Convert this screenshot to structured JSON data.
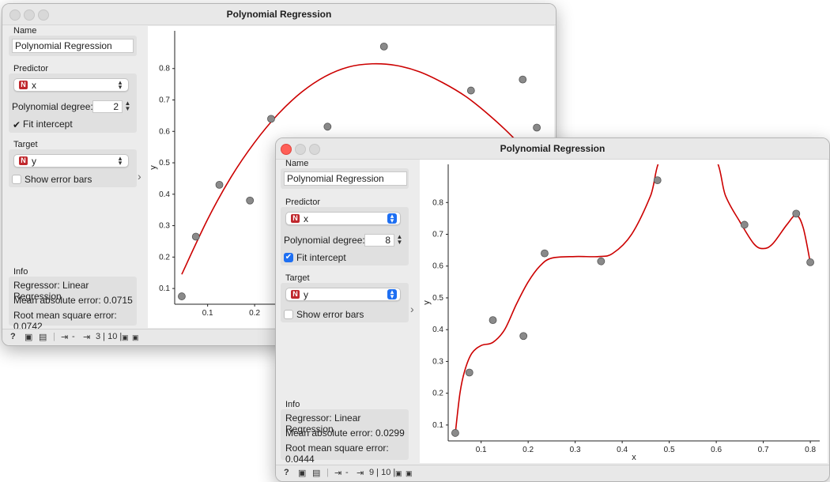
{
  "colors": {
    "accent": "#1e6ff2",
    "fit_curve": "#cc0000",
    "badge": "#c0282d",
    "point": "#8a8a8a"
  },
  "windows": [
    {
      "title": "Polynomial Regression",
      "active": false,
      "name_label": "Name",
      "name_value": "Polynomial Regression",
      "predictor_label": "Predictor",
      "predictor_badge": "N",
      "predictor_value": "x",
      "degree_label": "Polynomial degree:",
      "degree_value": "2",
      "fit_intercept_label": "Fit intercept",
      "fit_intercept_checked": true,
      "target_label": "Target",
      "target_badge": "N",
      "target_value": "y",
      "error_bars_label": "Show error bars",
      "error_bars_checked": false,
      "info_label": "Info",
      "info_lines": [
        "Regressor: Linear Regression",
        "Mean absolute error: 0.0715",
        "Root mean square error: 0.0742"
      ],
      "status_text": "3 | 10 |"
    },
    {
      "title": "Polynomial Regression",
      "active": true,
      "name_label": "Name",
      "name_value": "Polynomial Regression",
      "predictor_label": "Predictor",
      "predictor_badge": "N",
      "predictor_value": "x",
      "degree_label": "Polynomial degree:",
      "degree_value": "8",
      "fit_intercept_label": "Fit intercept",
      "fit_intercept_checked": true,
      "target_label": "Target",
      "target_badge": "N",
      "target_value": "y",
      "error_bars_label": "Show error bars",
      "error_bars_checked": false,
      "info_label": "Info",
      "info_lines": [
        "Regressor: Linear Regression",
        "Mean absolute error: 0.0299",
        "Root mean square error: 0.0444"
      ],
      "status_text": "9 | 10 |"
    }
  ],
  "chart_data": [
    {
      "type": "scatter",
      "xlabel": "x",
      "ylabel": "y",
      "xlim": [
        0.03,
        0.82
      ],
      "ylim": [
        0.05,
        0.92
      ],
      "x_ticks": [
        "0.1",
        "0.2",
        "0.3",
        "0.4",
        "0.5",
        "0.6",
        "0.7",
        "0.8"
      ],
      "y_ticks": [
        "0.1",
        "0.2",
        "0.3",
        "0.4",
        "0.5",
        "0.6",
        "0.7",
        "0.8"
      ],
      "points": [
        [
          0.045,
          0.075
        ],
        [
          0.075,
          0.265
        ],
        [
          0.125,
          0.43
        ],
        [
          0.19,
          0.38
        ],
        [
          0.235,
          0.64
        ],
        [
          0.355,
          0.615
        ],
        [
          0.475,
          0.87
        ],
        [
          0.66,
          0.73
        ],
        [
          0.77,
          0.765
        ],
        [
          0.8,
          0.612
        ]
      ],
      "fit_degree": 2,
      "fit_curve": [
        [
          0.045,
          0.145
        ],
        [
          0.1,
          0.32
        ],
        [
          0.15,
          0.455
        ],
        [
          0.2,
          0.565
        ],
        [
          0.25,
          0.655
        ],
        [
          0.3,
          0.725
        ],
        [
          0.35,
          0.775
        ],
        [
          0.4,
          0.805
        ],
        [
          0.45,
          0.815
        ],
        [
          0.5,
          0.81
        ],
        [
          0.55,
          0.79
        ],
        [
          0.6,
          0.755
        ],
        [
          0.65,
          0.71
        ],
        [
          0.7,
          0.65
        ],
        [
          0.75,
          0.58
        ],
        [
          0.8,
          0.495
        ]
      ]
    },
    {
      "type": "scatter",
      "xlabel": "x",
      "ylabel": "y",
      "xlim": [
        0.03,
        0.82
      ],
      "ylim": [
        0.05,
        0.92
      ],
      "x_ticks": [
        "0.1",
        "0.2",
        "0.3",
        "0.4",
        "0.5",
        "0.6",
        "0.7",
        "0.8"
      ],
      "y_ticks": [
        "0.1",
        "0.2",
        "0.3",
        "0.4",
        "0.5",
        "0.6",
        "0.7",
        "0.8"
      ],
      "points": [
        [
          0.045,
          0.075
        ],
        [
          0.075,
          0.265
        ],
        [
          0.125,
          0.43
        ],
        [
          0.19,
          0.38
        ],
        [
          0.235,
          0.64
        ],
        [
          0.355,
          0.615
        ],
        [
          0.475,
          0.87
        ],
        [
          0.66,
          0.73
        ],
        [
          0.77,
          0.765
        ],
        [
          0.8,
          0.612
        ]
      ],
      "fit_degree": 8,
      "fit_curve": [
        [
          0.045,
          0.072
        ],
        [
          0.055,
          0.2
        ],
        [
          0.065,
          0.27
        ],
        [
          0.08,
          0.325
        ],
        [
          0.1,
          0.35
        ],
        [
          0.125,
          0.36
        ],
        [
          0.15,
          0.4
        ],
        [
          0.175,
          0.48
        ],
        [
          0.2,
          0.55
        ],
        [
          0.225,
          0.6
        ],
        [
          0.25,
          0.625
        ],
        [
          0.3,
          0.63
        ],
        [
          0.35,
          0.63
        ],
        [
          0.38,
          0.64
        ],
        [
          0.42,
          0.7
        ],
        [
          0.46,
          0.82
        ],
        [
          0.49,
          0.95
        ],
        [
          0.59,
          0.95
        ],
        [
          0.62,
          0.82
        ],
        [
          0.65,
          0.74
        ],
        [
          0.68,
          0.67
        ],
        [
          0.7,
          0.655
        ],
        [
          0.72,
          0.67
        ],
        [
          0.75,
          0.73
        ],
        [
          0.77,
          0.76
        ],
        [
          0.785,
          0.72
        ],
        [
          0.8,
          0.61
        ]
      ]
    }
  ]
}
